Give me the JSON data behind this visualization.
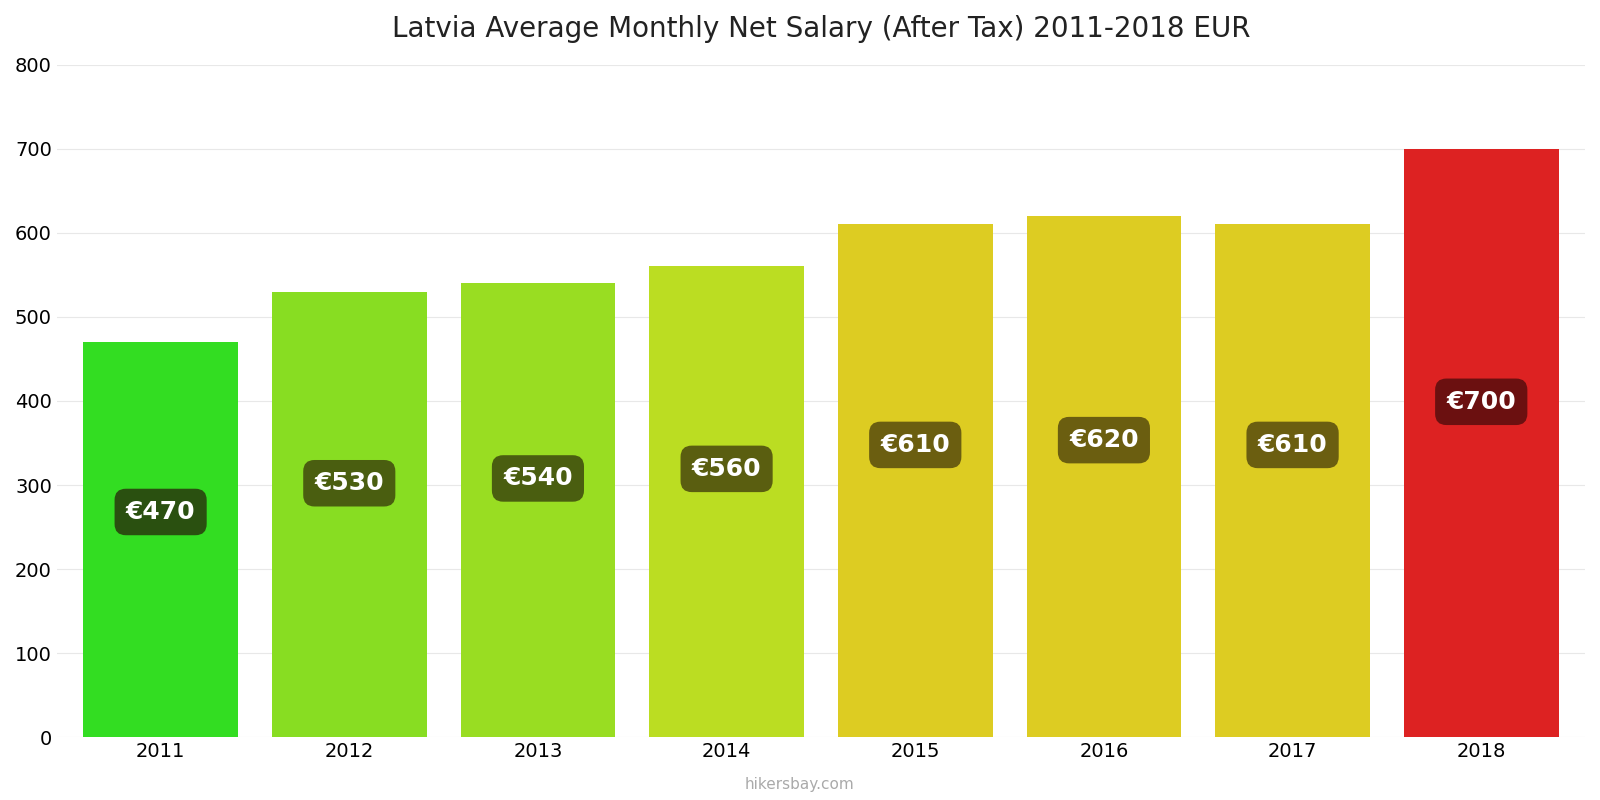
{
  "title": "Latvia Average Monthly Net Salary (After Tax) 2011-2018 EUR",
  "years": [
    2011,
    2012,
    2013,
    2014,
    2015,
    2016,
    2017,
    2018
  ],
  "values": [
    470,
    530,
    540,
    560,
    610,
    620,
    610,
    700
  ],
  "bar_colors": [
    "#33dd22",
    "#88dd22",
    "#99dd22",
    "#bbdd22",
    "#ddcc22",
    "#ddcc22",
    "#ddcc22",
    "#dd2222"
  ],
  "label_bg_colors": [
    "#2a5010",
    "#4a5e10",
    "#4a5e10",
    "#5a5e10",
    "#6b5e10",
    "#6b5e10",
    "#6b5e10",
    "#6b1010"
  ],
  "ylim": [
    0,
    800
  ],
  "yticks": [
    0,
    100,
    200,
    300,
    400,
    500,
    600,
    700,
    800
  ],
  "title_fontsize": 20,
  "watermark": "hikersbay.com",
  "background_color": "#ffffff",
  "label_fontsize": 18,
  "bar_width": 0.82
}
